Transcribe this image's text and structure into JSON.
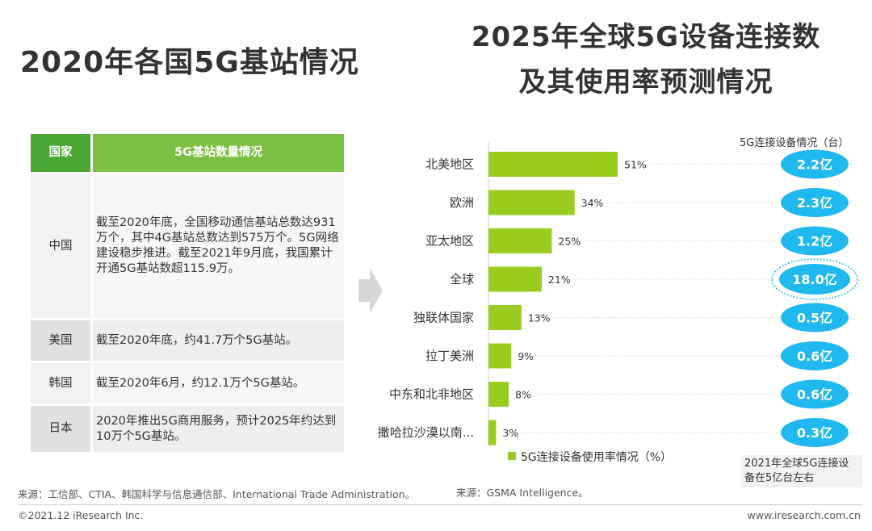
{
  "left": {
    "title": "2020年各国5G基站情况",
    "table": {
      "headers": [
        "国家",
        "5G基站数量情况"
      ],
      "rows": [
        {
          "country": "中国",
          "text": "截至2020年底，全国移动通信基站总数达931万个，其中4G基站总数达到575万个。5G网络建设稳步推进。截至2021年9月底，我国累计开通5G基站数超115.9万。"
        },
        {
          "country": "美国",
          "text": "截至2020年底，约41.7万个5G基站。"
        },
        {
          "country": "韩国",
          "text": "截至2020年6月，约12.1万个5G基站。"
        },
        {
          "country": "日本",
          "text": "2020年推出5G商用服务，预计2025年约达到10万个5G基站。"
        }
      ]
    },
    "source": "来源：工信部、CTIA、韩国科学与信息通信部、International Trade Administration。"
  },
  "right": {
    "title_line1": "2025年全球5G设备连接数",
    "title_line2": "及其使用率预测情况",
    "connections_header": "5G连接设备情况（台）",
    "note": "2021年全球5G连接设备在5亿台左右",
    "source": "来源：GSMA Intelligence。"
  },
  "chart_data": {
    "type": "bar",
    "orientation": "horizontal",
    "categories": [
      "北美地区",
      "欧洲",
      "亚太地区",
      "全球",
      "独联体国家",
      "拉丁美洲",
      "中东和北非地区",
      "撒哈拉沙漠以南..."
    ],
    "values": [
      51,
      34,
      25,
      21,
      13,
      9,
      8,
      3
    ],
    "value_labels": [
      "51%",
      "34%",
      "25%",
      "21%",
      "13%",
      "9%",
      "8%",
      "3%"
    ],
    "connections": [
      "2.2亿",
      "2.3亿",
      "1.2亿",
      "18.0亿",
      "0.5亿",
      "0.6亿",
      "0.6亿",
      "0.3亿"
    ],
    "highlight_index": 3,
    "legend": "5G连接设备使用率情况（%）",
    "bar_color": "#99cc1f",
    "bubble_color": "#1fb8ef",
    "xlim": [
      0,
      51
    ]
  },
  "footer": {
    "copyright": "©2021.12 iResearch Inc.",
    "website": "www.iresearch.com.cn"
  }
}
